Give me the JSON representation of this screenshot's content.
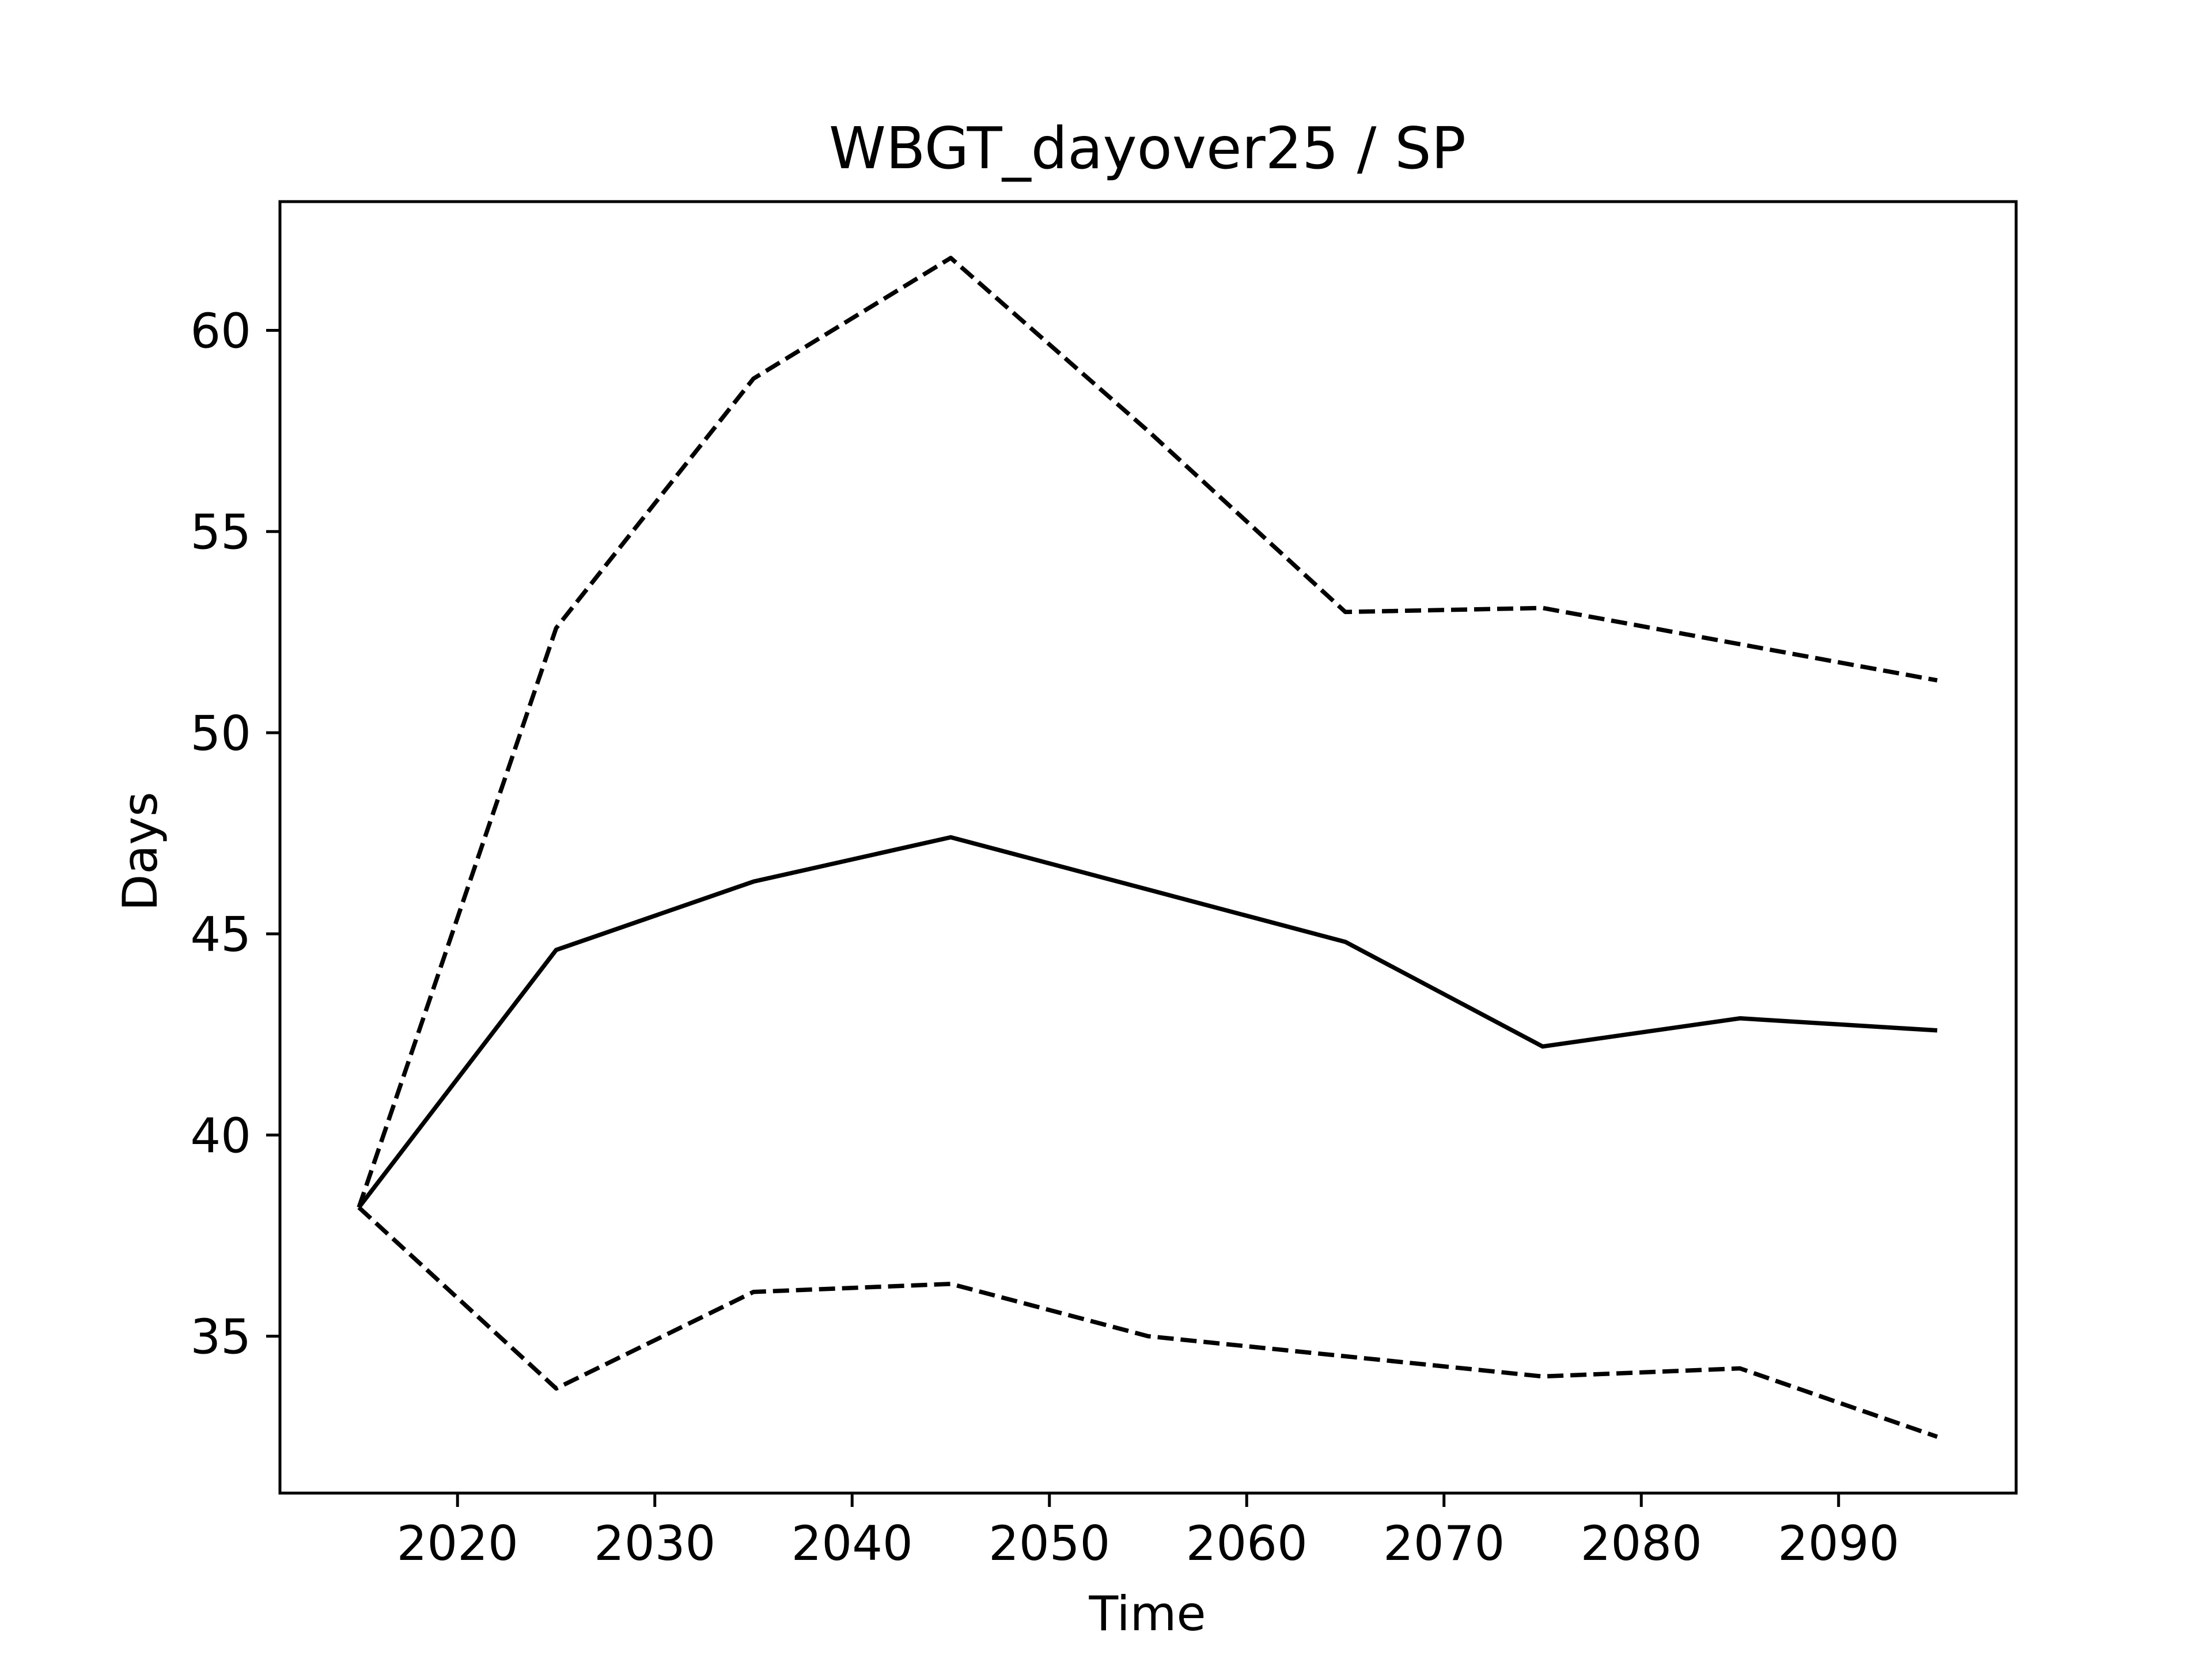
{
  "chart_data": {
    "type": "line",
    "title": "WBGT_dayover25 / SP",
    "xlabel": "Time",
    "ylabel": "Days",
    "xlim": [
      2011,
      2099
    ],
    "ylim": [
      31.1,
      63.2
    ],
    "xticks": [
      2020,
      2030,
      2040,
      2050,
      2060,
      2070,
      2080,
      2090
    ],
    "yticks": [
      35,
      40,
      45,
      50,
      55,
      60
    ],
    "grid": false,
    "line_color": "#000000",
    "series": [
      {
        "line_style": "solid",
        "x": [
          2015,
          2025,
          2035,
          2045,
          2055,
          2065,
          2075,
          2085,
          2095
        ],
        "values": [
          38.2,
          44.6,
          46.3,
          47.4,
          46.1,
          44.8,
          42.2,
          42.9,
          42.6
        ]
      },
      {
        "line_style": "dashed",
        "x": [
          2015,
          2025,
          2035,
          2045,
          2055,
          2065,
          2075,
          2085,
          2095
        ],
        "values": [
          38.2,
          52.6,
          58.8,
          61.8,
          57.5,
          53.0,
          53.1,
          52.2,
          51.3
        ]
      },
      {
        "line_style": "dashed",
        "x": [
          2015,
          2025,
          2035,
          2045,
          2055,
          2065,
          2075,
          2085,
          2095
        ],
        "values": [
          38.2,
          33.7,
          36.1,
          36.3,
          35.0,
          34.5,
          34.0,
          34.2,
          32.5
        ]
      }
    ]
  }
}
